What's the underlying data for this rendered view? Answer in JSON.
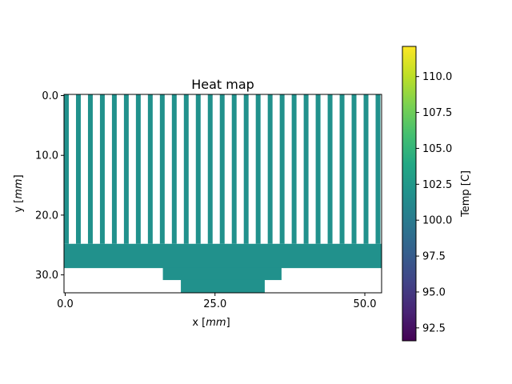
{
  "chart_data": {
    "type": "heatmap",
    "title": "Heat map",
    "xlabel": "x [",
    "xlabel_unit": "mm",
    "xlabel_end": "]",
    "ylabel": "y [",
    "ylabel_unit": "mm",
    "ylabel_end": "]",
    "xlim": [
      -0.2,
      52.8
    ],
    "ylim": [
      33.0,
      -0.2
    ],
    "y_inverted": true,
    "x_ticks": [
      0.0,
      25.0,
      50.0
    ],
    "x_tick_labels": [
      "0.0",
      "25.0",
      "50.0"
    ],
    "y_ticks": [
      0.0,
      10.0,
      20.0,
      30.0
    ],
    "y_tick_labels": [
      "0.0",
      "10.0",
      "20.0",
      "30.0"
    ],
    "uniform_value": 102.0,
    "fill_color": "#21918c",
    "background_color": "#ffffff",
    "fins": {
      "count": 27,
      "width": 0.8,
      "pitch": 2.0,
      "x_start": -0.2,
      "y_start": -0.2,
      "y_end": 24.8
    },
    "regions": [
      {
        "name": "base-plate",
        "x": [
          -0.2,
          52.8
        ],
        "y": [
          24.8,
          28.8
        ]
      },
      {
        "name": "step-upper",
        "x": [
          16.3,
          36.1
        ],
        "y": [
          28.8,
          30.8
        ]
      },
      {
        "name": "step-lower",
        "x": [
          19.3,
          33.3
        ],
        "y": [
          30.8,
          33.0
        ]
      }
    ],
    "grid": false,
    "colorbar": {
      "label": "Temp [C]",
      "min": 91.6,
      "max": 112.1,
      "colormap": "viridis",
      "ticks": [
        92.5,
        95.0,
        97.5,
        100.0,
        102.5,
        105.0,
        107.5,
        110.0
      ],
      "tick_labels": [
        "92.5",
        "95.0",
        "97.5",
        "100.0",
        "102.5",
        "105.0",
        "107.5",
        "110.0"
      ],
      "placement": "right"
    }
  }
}
